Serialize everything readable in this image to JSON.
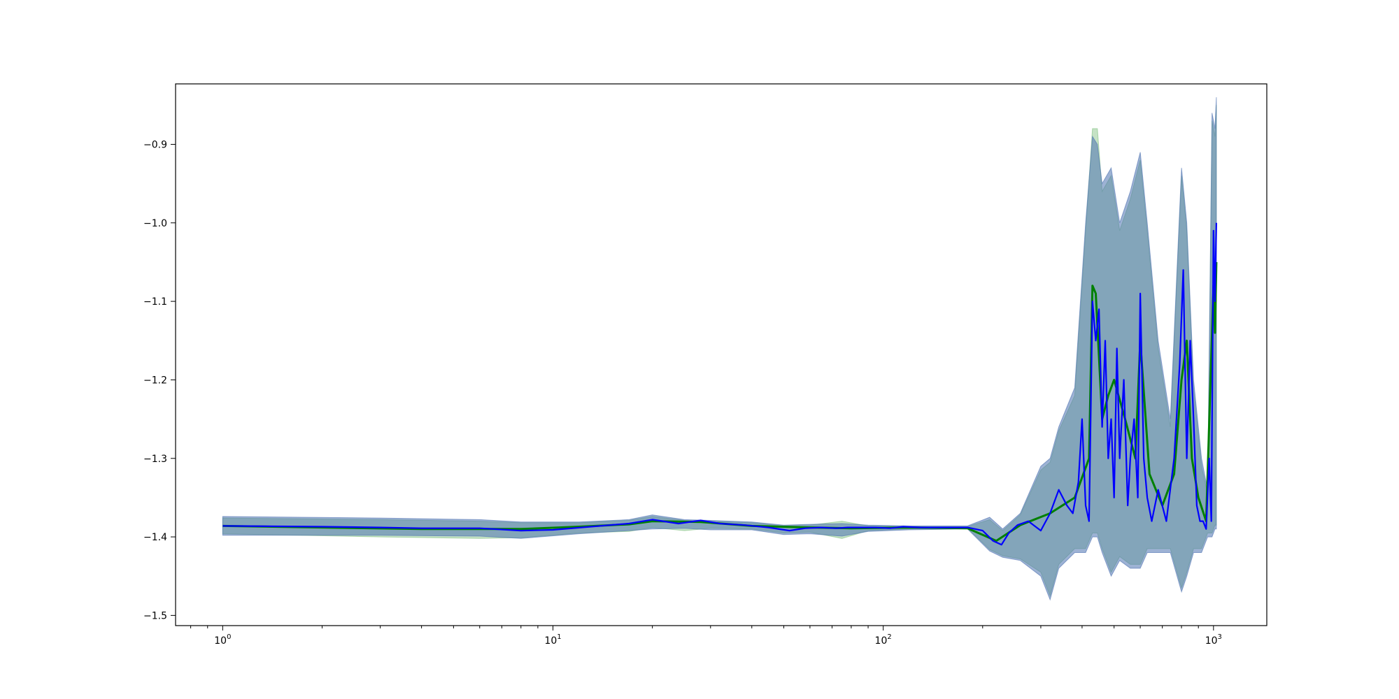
{
  "chart_data": {
    "type": "line",
    "title": "",
    "xlabel": "",
    "ylabel": "",
    "x_scale": "log",
    "xlim": [
      0.72,
      1450
    ],
    "ylim": [
      -1.513,
      -0.823
    ],
    "grid": false,
    "legend": "none",
    "x_ticks": [
      {
        "value": 1,
        "base": "10",
        "exp": "0"
      },
      {
        "value": 10,
        "base": "10",
        "exp": "1"
      },
      {
        "value": 100,
        "base": "10",
        "exp": "2"
      },
      {
        "value": 1000,
        "base": "10",
        "exp": "3"
      }
    ],
    "y_ticks": [
      {
        "value": -0.9,
        "label": "−0.9"
      },
      {
        "value": -1.0,
        "label": "−1.0"
      },
      {
        "value": -1.1,
        "label": "−1.1"
      },
      {
        "value": -1.2,
        "label": "−1.2"
      },
      {
        "value": -1.3,
        "label": "−1.3"
      },
      {
        "value": -1.4,
        "label": "−1.4"
      },
      {
        "value": -1.5,
        "label": "−1.5"
      }
    ],
    "colors": {
      "main_line": "#0000ff",
      "secondary_line": "#008000",
      "main_band": "#4c72b0",
      "secondary_band": "#7fbf7f"
    },
    "series": [
      {
        "role": "main line",
        "x": [
          1,
          2,
          3,
          4,
          6,
          8,
          10,
          13,
          17,
          20,
          24,
          28,
          32,
          38,
          45,
          52,
          58,
          65,
          72,
          78,
          85,
          95,
          105,
          115,
          130,
          150,
          180,
          200,
          215,
          228,
          240,
          255,
          275,
          300,
          320,
          340,
          360,
          375,
          390,
          400,
          410,
          420,
          430,
          440,
          450,
          460,
          470,
          480,
          490,
          500,
          510,
          520,
          535,
          550,
          560,
          575,
          590,
          600,
          615,
          630,
          650,
          680,
          720,
          760,
          790,
          810,
          830,
          850,
          870,
          890,
          910,
          930,
          950,
          970,
          985,
          1000,
          1010,
          1020
        ],
        "y": [
          -1.386,
          -1.387,
          -1.388,
          -1.389,
          -1.389,
          -1.392,
          -1.391,
          -1.387,
          -1.383,
          -1.378,
          -1.383,
          -1.379,
          -1.383,
          -1.385,
          -1.388,
          -1.392,
          -1.389,
          -1.388,
          -1.389,
          -1.388,
          -1.388,
          -1.388,
          -1.389,
          -1.387,
          -1.388,
          -1.388,
          -1.388,
          -1.392,
          -1.405,
          -1.41,
          -1.395,
          -1.385,
          -1.38,
          -1.392,
          -1.37,
          -1.34,
          -1.36,
          -1.37,
          -1.33,
          -1.25,
          -1.36,
          -1.38,
          -1.1,
          -1.15,
          -1.11,
          -1.26,
          -1.15,
          -1.3,
          -1.25,
          -1.35,
          -1.16,
          -1.3,
          -1.2,
          -1.36,
          -1.3,
          -1.25,
          -1.35,
          -1.09,
          -1.3,
          -1.35,
          -1.38,
          -1.34,
          -1.38,
          -1.3,
          -1.18,
          -1.06,
          -1.3,
          -1.15,
          -1.25,
          -1.36,
          -1.38,
          -1.38,
          -1.39,
          -1.3,
          -1.38,
          -1.01,
          -1.1,
          -1.0
        ]
      },
      {
        "role": "secondary line",
        "x": [
          1,
          4,
          8,
          12,
          17,
          20,
          28,
          40,
          60,
          80,
          120,
          180,
          220,
          260,
          320,
          380,
          420,
          430,
          440,
          460,
          480,
          500,
          540,
          580,
          600,
          640,
          700,
          760,
          800,
          830,
          860,
          900,
          950,
          1000,
          1010,
          1020
        ],
        "y": [
          -1.386,
          -1.39,
          -1.39,
          -1.387,
          -1.384,
          -1.38,
          -1.381,
          -1.386,
          -1.388,
          -1.389,
          -1.388,
          -1.389,
          -1.405,
          -1.385,
          -1.37,
          -1.35,
          -1.3,
          -1.08,
          -1.09,
          -1.25,
          -1.22,
          -1.2,
          -1.25,
          -1.3,
          -1.15,
          -1.32,
          -1.36,
          -1.32,
          -1.2,
          -1.15,
          -1.3,
          -1.35,
          -1.38,
          -1.08,
          -1.14,
          -1.05
        ]
      },
      {
        "role": "main band",
        "x": [
          1,
          3,
          6,
          8,
          12,
          17,
          20,
          25,
          30,
          40,
          50,
          60,
          75,
          90,
          120,
          180,
          210,
          230,
          260,
          300,
          320,
          340,
          380,
          410,
          430,
          445,
          460,
          490,
          520,
          560,
          600,
          630,
          680,
          740,
          800,
          830,
          870,
          920,
          960,
          990,
          1010,
          1020
        ],
        "upper": [
          -1.374,
          -1.376,
          -1.378,
          -1.381,
          -1.381,
          -1.378,
          -1.372,
          -1.378,
          -1.379,
          -1.381,
          -1.385,
          -1.384,
          -1.383,
          -1.385,
          -1.386,
          -1.386,
          -1.375,
          -1.39,
          -1.37,
          -1.31,
          -1.3,
          -1.26,
          -1.21,
          -1.0,
          -0.89,
          -0.9,
          -0.95,
          -0.93,
          -1.0,
          -0.96,
          -0.91,
          -1.0,
          -1.15,
          -1.25,
          -0.93,
          -1.0,
          -1.2,
          -1.3,
          -1.34,
          -0.86,
          -0.88,
          -0.84
        ],
        "lower": [
          -1.398,
          -1.398,
          -1.399,
          -1.402,
          -1.396,
          -1.392,
          -1.39,
          -1.389,
          -1.391,
          -1.391,
          -1.397,
          -1.396,
          -1.399,
          -1.393,
          -1.391,
          -1.39,
          -1.418,
          -1.426,
          -1.43,
          -1.45,
          -1.48,
          -1.44,
          -1.42,
          -1.42,
          -1.4,
          -1.4,
          -1.42,
          -1.45,
          -1.43,
          -1.44,
          -1.44,
          -1.42,
          -1.42,
          -1.42,
          -1.47,
          -1.45,
          -1.42,
          -1.42,
          -1.4,
          -1.4,
          -1.39,
          -1.39
        ]
      },
      {
        "role": "secondary band",
        "x": [
          1,
          3,
          6,
          8,
          12,
          17,
          20,
          25,
          30,
          40,
          50,
          60,
          75,
          90,
          120,
          180,
          210,
          230,
          260,
          300,
          320,
          340,
          380,
          410,
          430,
          445,
          460,
          490,
          520,
          560,
          600,
          630,
          680,
          740,
          800,
          830,
          870,
          920,
          960,
          990,
          1010,
          1020
        ],
        "upper": [
          -1.376,
          -1.378,
          -1.38,
          -1.382,
          -1.382,
          -1.379,
          -1.374,
          -1.379,
          -1.38,
          -1.382,
          -1.386,
          -1.385,
          -1.38,
          -1.386,
          -1.387,
          -1.387,
          -1.378,
          -1.392,
          -1.372,
          -1.315,
          -1.305,
          -1.265,
          -1.22,
          -1.01,
          -0.88,
          -0.88,
          -0.96,
          -0.94,
          -1.01,
          -0.97,
          -0.92,
          -1.01,
          -1.16,
          -1.26,
          -0.94,
          -1.01,
          -1.21,
          -1.31,
          -1.345,
          -0.87,
          -0.89,
          -0.85
        ],
        "lower": [
          -1.396,
          -1.4,
          -1.402,
          -1.401,
          -1.395,
          -1.393,
          -1.388,
          -1.392,
          -1.389,
          -1.39,
          -1.395,
          -1.394,
          -1.402,
          -1.392,
          -1.39,
          -1.389,
          -1.416,
          -1.424,
          -1.428,
          -1.445,
          -1.475,
          -1.435,
          -1.415,
          -1.415,
          -1.395,
          -1.395,
          -1.415,
          -1.445,
          -1.425,
          -1.435,
          -1.435,
          -1.415,
          -1.415,
          -1.415,
          -1.465,
          -1.445,
          -1.415,
          -1.415,
          -1.395,
          -1.395,
          -1.385,
          -1.385
        ]
      }
    ]
  }
}
